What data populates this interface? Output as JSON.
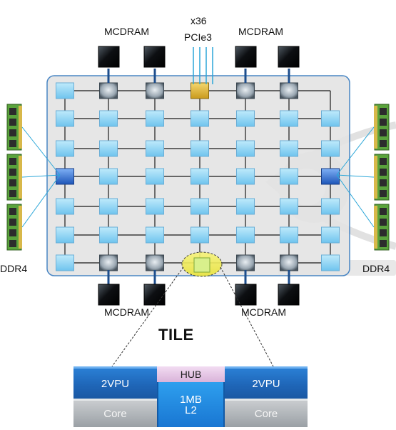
{
  "labels": {
    "mcdram_top_left": "MCDRAM",
    "mcdram_top_right": "MCDRAM",
    "mcdram_bottom_left": "MCDRAM",
    "mcdram_bottom_right": "MCDRAM",
    "pcie_count": "x36",
    "pcie": "PCIe3",
    "ddr4_left": "DDR4",
    "ddr4_right": "DDR4",
    "tile_title": "TILE"
  },
  "tile_blocks": {
    "vpu_left": "2VPU",
    "vpu_right": "2VPU",
    "hub": "HUB",
    "l2_line1": "1MB",
    "l2_line2": "L2",
    "core_left": "Core",
    "core_right": "Core"
  },
  "colors": {
    "mesh_background": "#e4e4e4",
    "mesh_border": "#3a7cc0",
    "tile_node": "#8fd3f3",
    "mcdram_stop": "#6f7f8c",
    "pcie_stop": "#d9b43a",
    "ddr_stop": "#2f6fd0",
    "highlight": "#f2ef5a",
    "vpu": "#1f66b8",
    "core": "#a9aeb2",
    "hub": "#e6c6e6",
    "l2": "#1f86e0",
    "dimm_green": "#5aa33c"
  }
}
